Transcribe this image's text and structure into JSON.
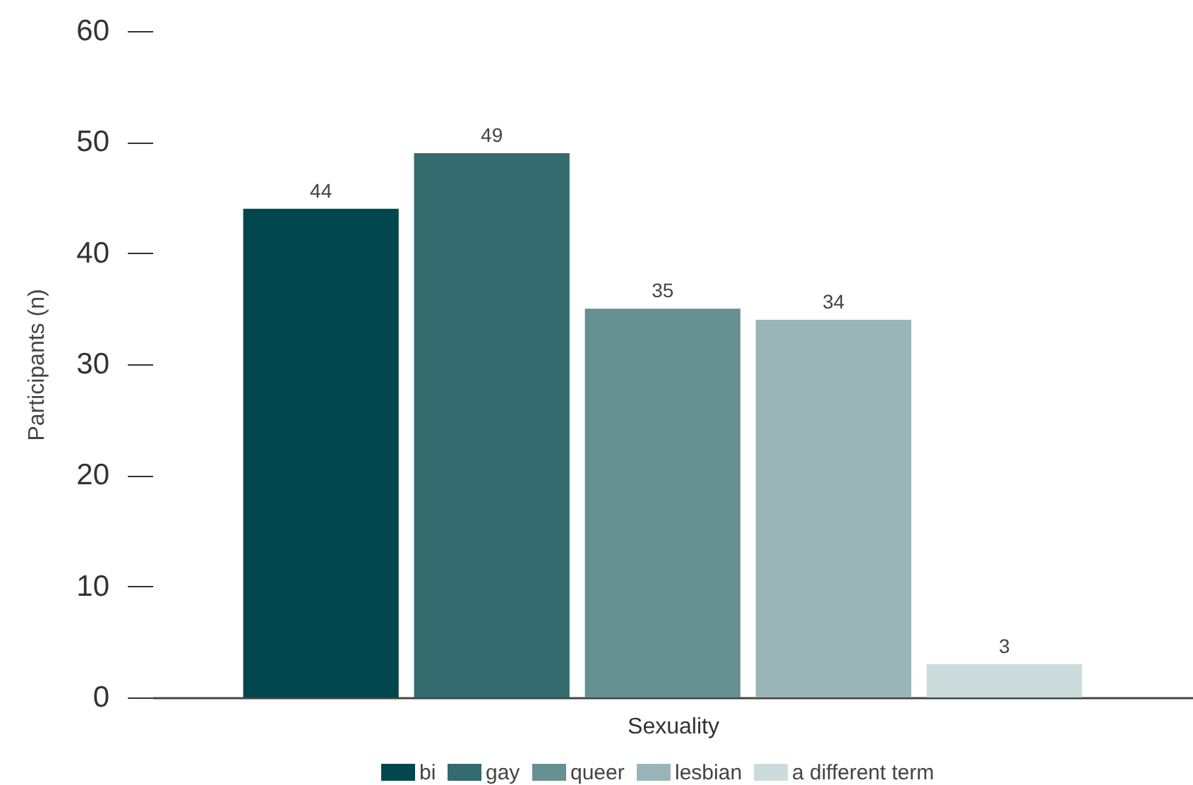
{
  "chart_data": {
    "type": "bar",
    "xlabel": "Sexuality",
    "ylabel": "Participants (n)",
    "categories": [
      null,
      null,
      null,
      null,
      null
    ],
    "series": [
      {
        "name": "bi",
        "color": "#02474d",
        "values": [
          44,
          null,
          null,
          null,
          null
        ]
      },
      {
        "name": "gay",
        "color": "#336b6f",
        "values": [
          null,
          49,
          null,
          null,
          null
        ]
      },
      {
        "name": "queer",
        "color": "#669092",
        "values": [
          null,
          null,
          35,
          null,
          null
        ]
      },
      {
        "name": "lesbian",
        "color": "#9ab5b8",
        "values": [
          null,
          null,
          null,
          34,
          null
        ]
      },
      {
        "name": "a different term",
        "color": "#ccdbdc",
        "values": [
          null,
          null,
          null,
          null,
          3
        ]
      }
    ],
    "stacked": true,
    "ylim": [
      0,
      60
    ],
    "yticks": [
      0,
      10,
      20,
      30,
      40,
      50,
      60
    ],
    "data_labels": true,
    "legend": "bottom",
    "tick_labels": "y",
    "grid": false
  }
}
